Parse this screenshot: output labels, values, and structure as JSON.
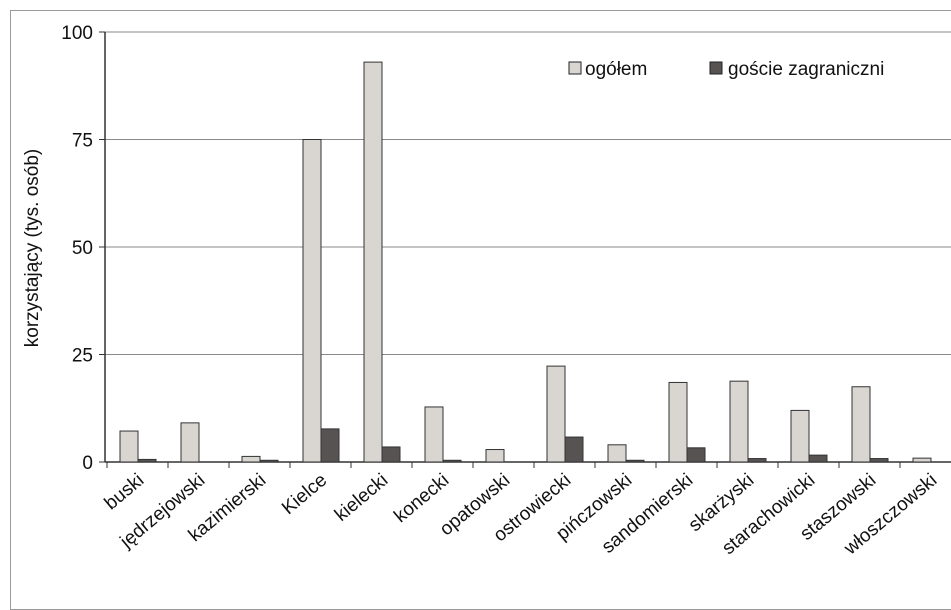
{
  "chart_data": {
    "type": "bar",
    "title": "",
    "xlabel": "",
    "ylabel": "korzystający (tys. osób)",
    "ylim": [
      0,
      100
    ],
    "yticks": [
      0,
      25,
      50,
      75,
      100
    ],
    "grid": true,
    "legend_position": "top-right",
    "categories": [
      "buski",
      "jędrzejowski",
      "kazimierski",
      "Kielce",
      "kielecki",
      "konecki",
      "opatowski",
      "ostrowiecki",
      "pińczowski",
      "sandomierski",
      "skarżyski",
      "starachowicki",
      "staszowski",
      "włoszczowski"
    ],
    "series": [
      {
        "name": "ogółem",
        "color": "#d9d6d2",
        "values": [
          7.2,
          9.1,
          1.3,
          75.0,
          93.0,
          12.8,
          2.9,
          22.3,
          4.0,
          18.5,
          18.8,
          12.0,
          17.5,
          0.9
        ]
      },
      {
        "name": "goście zagraniczni",
        "color": "#575353",
        "values": [
          0.6,
          0.0,
          0.4,
          7.7,
          3.5,
          0.4,
          0.0,
          5.8,
          0.4,
          3.3,
          0.8,
          1.6,
          0.8,
          0.0
        ]
      }
    ]
  }
}
